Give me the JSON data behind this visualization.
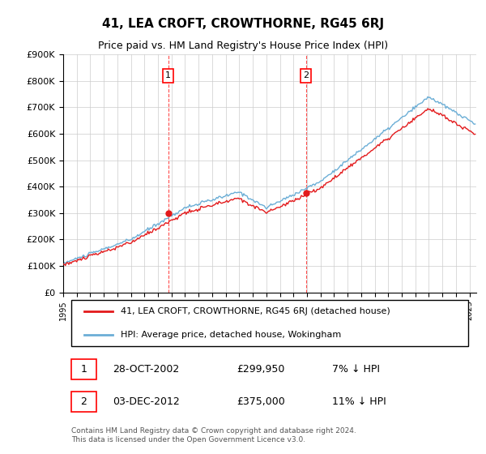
{
  "title": "41, LEA CROFT, CROWTHORNE, RG45 6RJ",
  "subtitle": "Price paid vs. HM Land Registry's House Price Index (HPI)",
  "ylim": [
    0,
    900000
  ],
  "yticks": [
    0,
    100000,
    200000,
    300000,
    400000,
    500000,
    600000,
    700000,
    800000,
    900000
  ],
  "ytick_labels": [
    "£0",
    "£100K",
    "£200K",
    "£300K",
    "£400K",
    "£500K",
    "£600K",
    "£700K",
    "£800K",
    "£900K"
  ],
  "hpi_color": "#6baed6",
  "price_color": "#e31a1c",
  "marker1_date_idx": 7.8,
  "marker2_date_idx": 17.9,
  "legend_label_price": "41, LEA CROFT, CROWTHORNE, RG45 6RJ (detached house)",
  "legend_label_hpi": "HPI: Average price, detached house, Wokingham",
  "sale1_label": "1",
  "sale1_date": "28-OCT-2002",
  "sale1_price": "£299,950",
  "sale1_hpi": "7% ↓ HPI",
  "sale2_label": "2",
  "sale2_date": "03-DEC-2012",
  "sale2_price": "£375,000",
  "sale2_hpi": "11% ↓ HPI",
  "footer": "Contains HM Land Registry data © Crown copyright and database right 2024.\nThis data is licensed under the Open Government Licence v3.0.",
  "background_color": "#ffffff",
  "grid_color": "#cccccc"
}
